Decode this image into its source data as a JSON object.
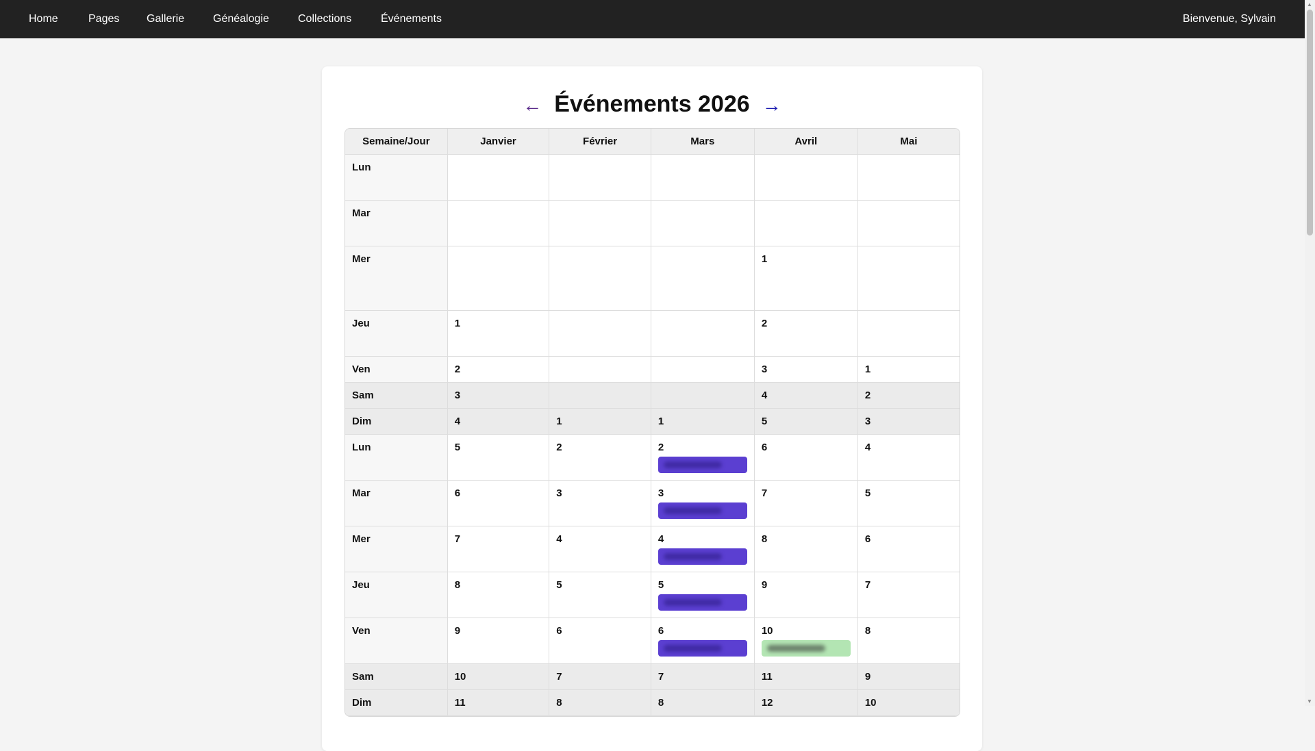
{
  "nav": {
    "items": [
      "Home",
      "Pages",
      "Gallerie",
      "Généalogie",
      "Collections",
      "Événements"
    ],
    "welcome": "Bienvenue, Sylvain"
  },
  "page": {
    "title": "Événements 2026",
    "prev": "←",
    "next": "→"
  },
  "table": {
    "headers": [
      "Semaine/Jour",
      "Janvier",
      "Février",
      "Mars",
      "Avril",
      "Mai"
    ],
    "rows": [
      {
        "day": "Lun",
        "cells": [
          "",
          "",
          "",
          "",
          ""
        ]
      },
      {
        "day": "Mar",
        "cells": [
          "",
          "",
          "",
          "",
          ""
        ]
      },
      {
        "day": "Mer",
        "cells": [
          "",
          "",
          "",
          "1",
          ""
        ]
      },
      {
        "day": "Jeu",
        "cells": [
          "1",
          "",
          "",
          "2",
          ""
        ]
      },
      {
        "day": "Ven",
        "cells": [
          "2",
          "",
          "",
          "3",
          "1"
        ]
      },
      {
        "day": "Sam",
        "weekend": true,
        "cells": [
          "3",
          "",
          "",
          "4",
          "2"
        ]
      },
      {
        "day": "Dim",
        "weekend": true,
        "cells": [
          "4",
          "1",
          "1",
          "5",
          "3"
        ]
      },
      {
        "day": "Lun",
        "cells": [
          "5",
          "2",
          "2",
          "6",
          "4"
        ]
      },
      {
        "day": "Mar",
        "cells": [
          "6",
          "3",
          "3",
          "7",
          "5"
        ]
      },
      {
        "day": "Mer",
        "cells": [
          "7",
          "4",
          "4",
          "8",
          "6"
        ]
      },
      {
        "day": "Jeu",
        "cells": [
          "8",
          "5",
          "5",
          "9",
          "7"
        ]
      },
      {
        "day": "Ven",
        "cells": [
          "9",
          "6",
          "6",
          "10",
          "8"
        ]
      },
      {
        "day": "Sam",
        "weekend": true,
        "cells": [
          "10",
          "7",
          "7",
          "11",
          "9"
        ]
      },
      {
        "day": "Dim",
        "weekend": true,
        "cells": [
          "11",
          "8",
          "8",
          "12",
          "10"
        ]
      }
    ],
    "events": [
      {
        "row": 7,
        "col": 2,
        "color": "#5b3fd1"
      },
      {
        "row": 8,
        "col": 2,
        "color": "#5b3fd1"
      },
      {
        "row": 9,
        "col": 2,
        "color": "#5b3fd1"
      },
      {
        "row": 10,
        "col": 2,
        "color": "#5b3fd1"
      },
      {
        "row": 11,
        "col": 2,
        "color": "#5b3fd1"
      },
      {
        "row": 11,
        "col": 3,
        "color": "#b3e5b3"
      }
    ]
  }
}
